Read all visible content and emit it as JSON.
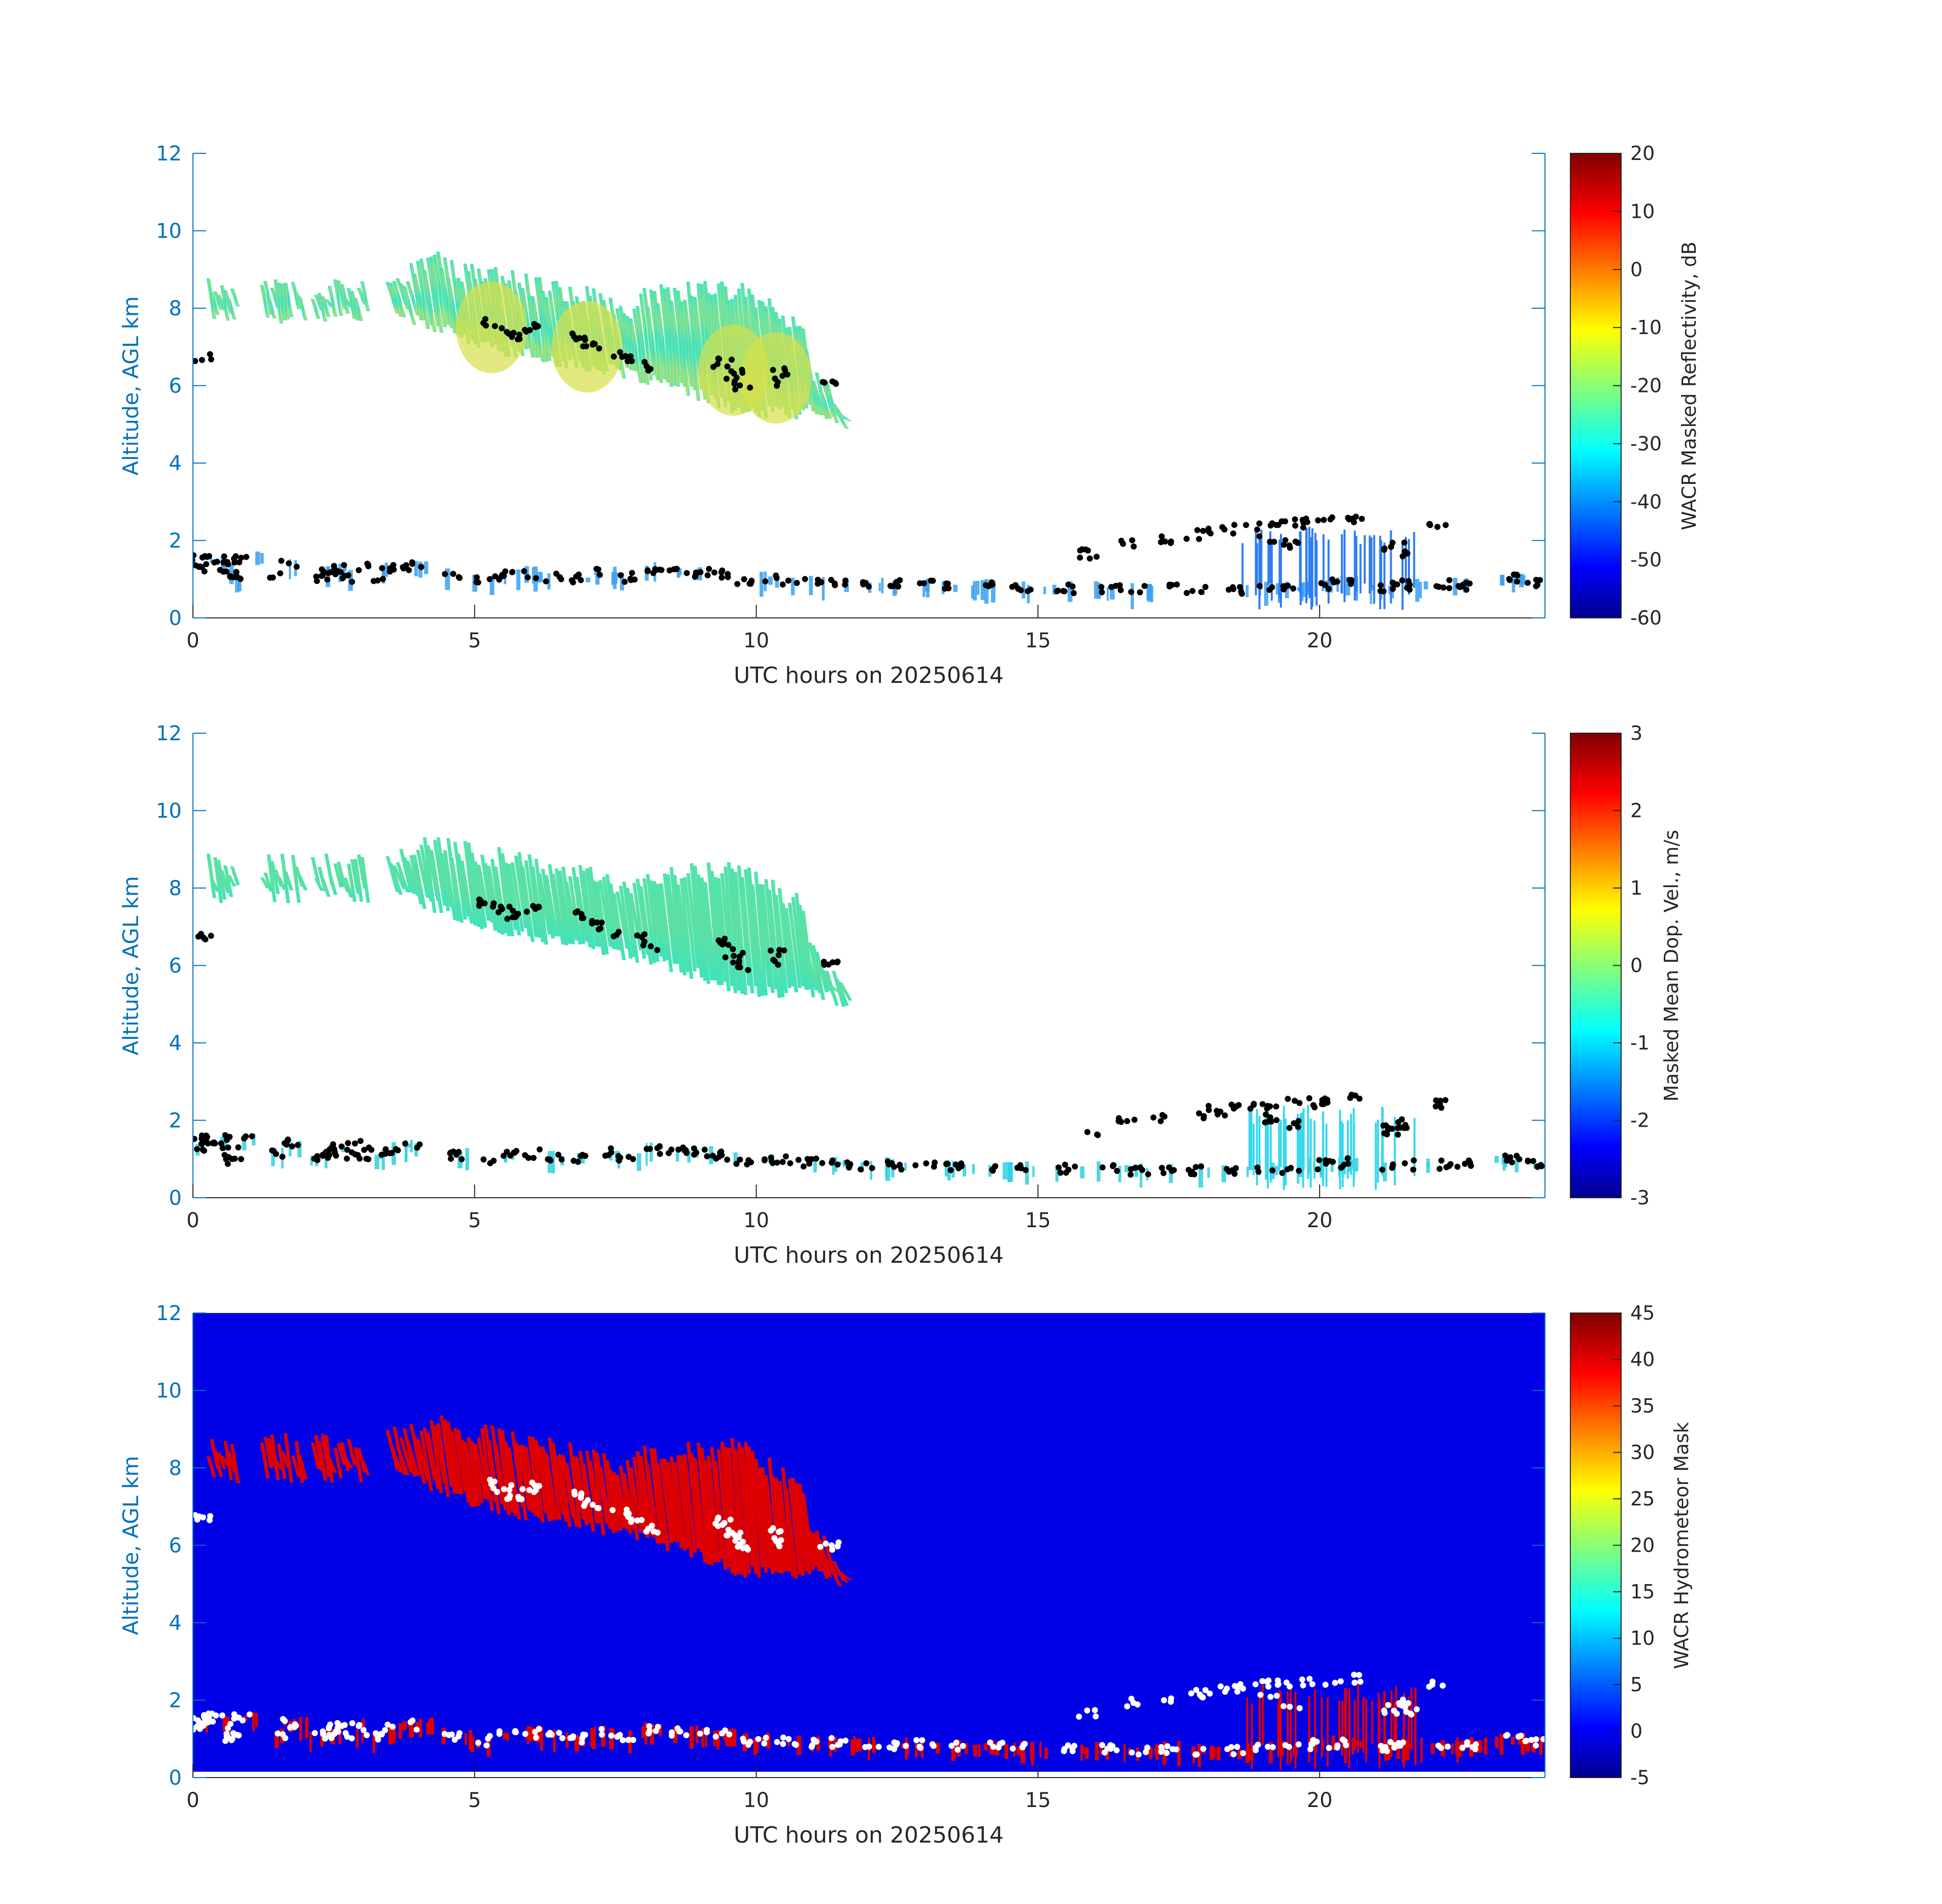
{
  "colors": {
    "y_axis": "#0072bd",
    "x_axis": "#262626",
    "mask_background": "#0000e6",
    "mask_hydrometeor": "#dd0000",
    "lidar_dots_panels_1_2": "#000000",
    "lidar_dots_panel_3": "#ffffff"
  },
  "chart_data": [
    {
      "type": "heatmap",
      "title": "",
      "xlabel": "UTC hours on 20250614",
      "ylabel": "Altitude, AGL km",
      "xlim": [
        0,
        24
      ],
      "ylim": [
        0,
        12
      ],
      "x_ticks": [
        "0",
        "5",
        "10",
        "15",
        "20"
      ],
      "y_ticks": [
        "0",
        "2",
        "4",
        "6",
        "8",
        "10",
        "12"
      ],
      "colormap": "jet",
      "colorbar": {
        "label": "WACR Masked Reflectivity, dB",
        "range": [
          -60,
          20
        ],
        "ticks": [
          "-60",
          "-50",
          "-40",
          "-30",
          "-20",
          "-10",
          "0",
          "10",
          "20"
        ]
      },
      "cloud_layers": [
        {
          "name": "upper",
          "x_range": [
            0.3,
            11.7
          ],
          "base_km": [
            8.0,
            5.3
          ],
          "top_km": [
            8.7,
            9.5
          ],
          "typical_value": -25
        },
        {
          "name": "lower",
          "x_range": [
            0,
            24
          ],
          "base_km": 0.6,
          "top_km": 2.5,
          "typical_value": -35
        }
      ],
      "overlay_points": "lidar cloud base (black dots)"
    },
    {
      "type": "heatmap",
      "title": "",
      "xlabel": "UTC hours on 20250614",
      "ylabel": "Altitude, AGL km",
      "xlim": [
        0,
        24
      ],
      "ylim": [
        0,
        12
      ],
      "x_ticks": [
        "0",
        "5",
        "10",
        "15",
        "20"
      ],
      "y_ticks": [
        "0",
        "2",
        "4",
        "6",
        "8",
        "10",
        "12"
      ],
      "colormap": "jet",
      "colorbar": {
        "label": "Masked Mean Dop. Vel., m/s",
        "range": [
          -3,
          3
        ],
        "ticks": [
          "-3",
          "-2",
          "-1",
          "0",
          "1",
          "2",
          "3"
        ]
      },
      "cloud_layers": [
        {
          "name": "upper",
          "x_range": [
            0.3,
            11.7
          ],
          "base_km": [
            8.0,
            5.3
          ],
          "top_km": [
            8.7,
            9.5
          ],
          "typical_value": -0.3
        },
        {
          "name": "lower",
          "x_range": [
            0,
            24
          ],
          "base_km": 0.6,
          "top_km": 2.5,
          "typical_value": -1.0
        }
      ],
      "overlay_points": "lidar cloud base (black dots)"
    },
    {
      "type": "heatmap",
      "title": "",
      "xlabel": "UTC hours on 20250614",
      "ylabel": "Altitude, AGL km",
      "xlim": [
        0,
        24
      ],
      "ylim": [
        0,
        12
      ],
      "x_ticks": [
        "0",
        "5",
        "10",
        "15",
        "20"
      ],
      "y_ticks": [
        "0",
        "2",
        "4",
        "6",
        "8",
        "10",
        "12"
      ],
      "colormap": "jet",
      "colorbar": {
        "label": "WACR Hydrometeor Mask",
        "range": [
          -5,
          45
        ],
        "ticks": [
          "-5",
          "0",
          "5",
          "10",
          "15",
          "20",
          "25",
          "30",
          "35",
          "40",
          "45"
        ]
      },
      "background_value": 0,
      "cloud_layers": [
        {
          "name": "upper",
          "x_range": [
            0.3,
            11.7
          ],
          "base_km": [
            8.0,
            5.3
          ],
          "top_km": [
            8.7,
            9.5
          ],
          "typical_value": 40
        },
        {
          "name": "lower",
          "x_range": [
            0,
            24
          ],
          "base_km": 0.6,
          "top_km": 2.5,
          "typical_value": 40
        }
      ],
      "overlay_points": "lidar cloud base (white dots)"
    }
  ]
}
